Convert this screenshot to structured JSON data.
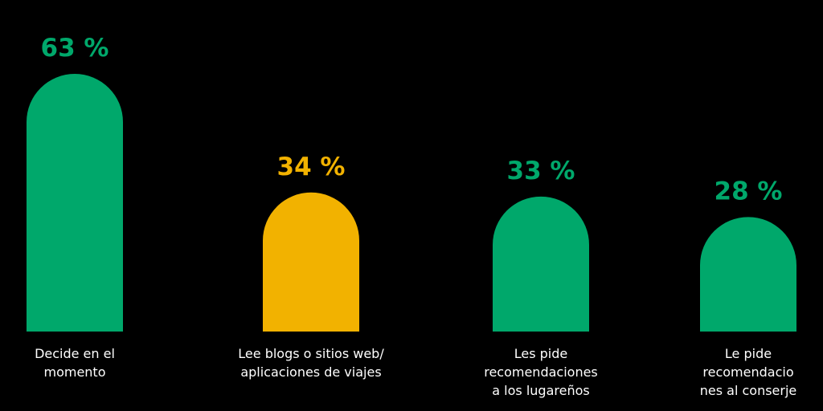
{
  "chart_data": {
    "type": "bar",
    "categories": [
      [
        "Decide en el",
        "momento"
      ],
      [
        "Lee blogs o sitios web/",
        "aplicaciones de viajes"
      ],
      [
        "Les pide",
        "recomendaciones",
        "a los lugareños"
      ],
      [
        "Le pide",
        "recomendacio",
        "nes al conserje"
      ]
    ],
    "values": [
      63,
      34,
      33,
      28
    ],
    "value_labels": [
      "63 %",
      "34 %",
      "33 %",
      "28 %"
    ],
    "colors": [
      "#00a86b",
      "#f2b200",
      "#00a86b",
      "#00a86b"
    ]
  }
}
